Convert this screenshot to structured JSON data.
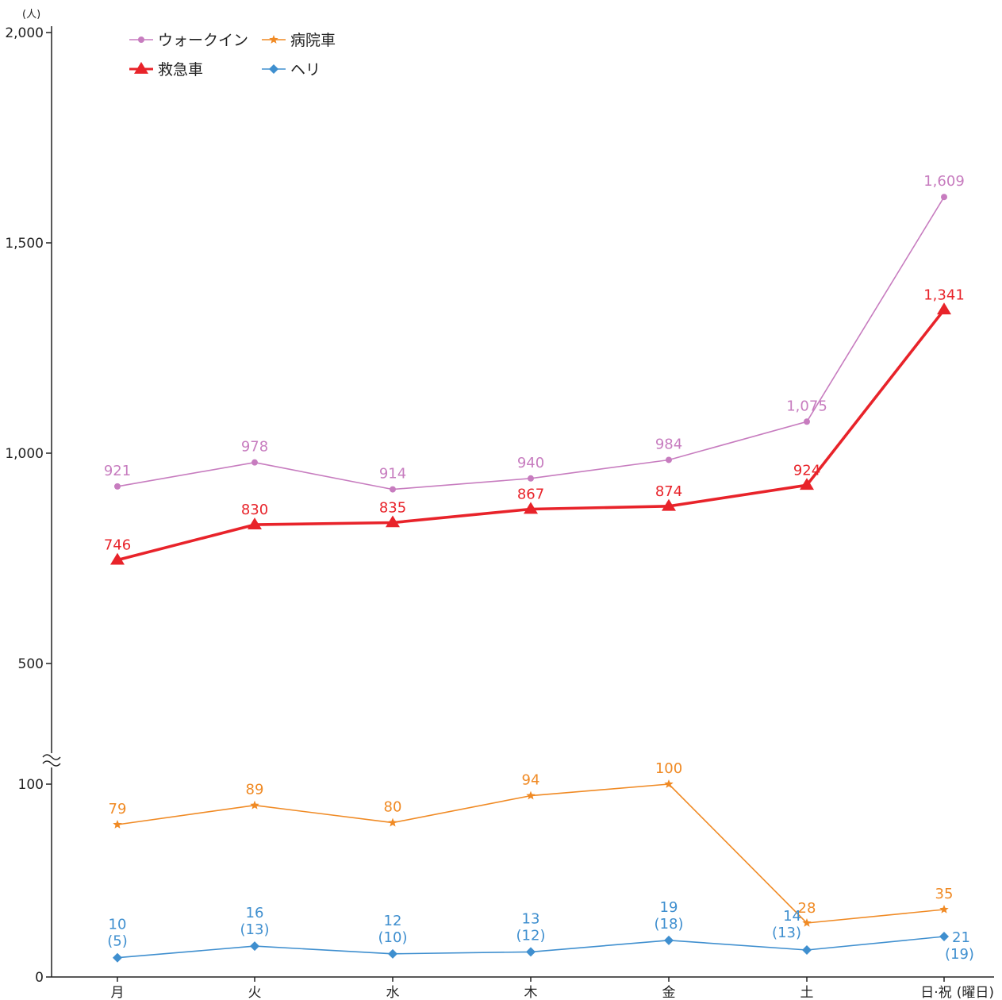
{
  "chart_data": {
    "type": "line",
    "y_unit": "(人)",
    "x_unit": "(曜日)",
    "categories": [
      "月",
      "火",
      "水",
      "木",
      "金",
      "土",
      "日·祝"
    ],
    "y_axis": {
      "broken": true,
      "upper_range": [
        500,
        2000
      ],
      "upper_ticks": [
        "500",
        "1,000",
        "1,500",
        "2,000"
      ],
      "lower_range": [
        0,
        100
      ],
      "lower_ticks": [
        "0",
        "100"
      ]
    },
    "legend_position": "top-left",
    "series": [
      {
        "name": "ウォークイン",
        "color": "#c77cbf",
        "marker": "circle",
        "values": [
          921,
          978,
          914,
          940,
          984,
          1075,
          1609
        ],
        "labels": [
          "921",
          "978",
          "914",
          "940",
          "984",
          "1,075",
          "1,609"
        ]
      },
      {
        "name": "救急車",
        "color": "#e8232a",
        "marker": "triangle",
        "values": [
          746,
          830,
          835,
          867,
          874,
          924,
          1341
        ],
        "labels": [
          "746",
          "830",
          "835",
          "867",
          "874",
          "924",
          "1,341"
        ]
      },
      {
        "name": "病院車",
        "color": "#f08a24",
        "marker": "star",
        "values": [
          79,
          89,
          80,
          94,
          100,
          28,
          35
        ],
        "labels": [
          "79",
          "89",
          "80",
          "94",
          "100",
          "28",
          "35"
        ]
      },
      {
        "name": "ヘリ",
        "color": "#3f8fcf",
        "marker": "diamond",
        "values": [
          10,
          16,
          12,
          13,
          19,
          14,
          21
        ],
        "labels": [
          "10",
          "16",
          "12",
          "13",
          "19",
          "14",
          "21"
        ],
        "sub_labels": [
          "(5)",
          "(13)",
          "(10)",
          "(12)",
          "(18)",
          "(13)",
          "(19)"
        ]
      }
    ]
  }
}
